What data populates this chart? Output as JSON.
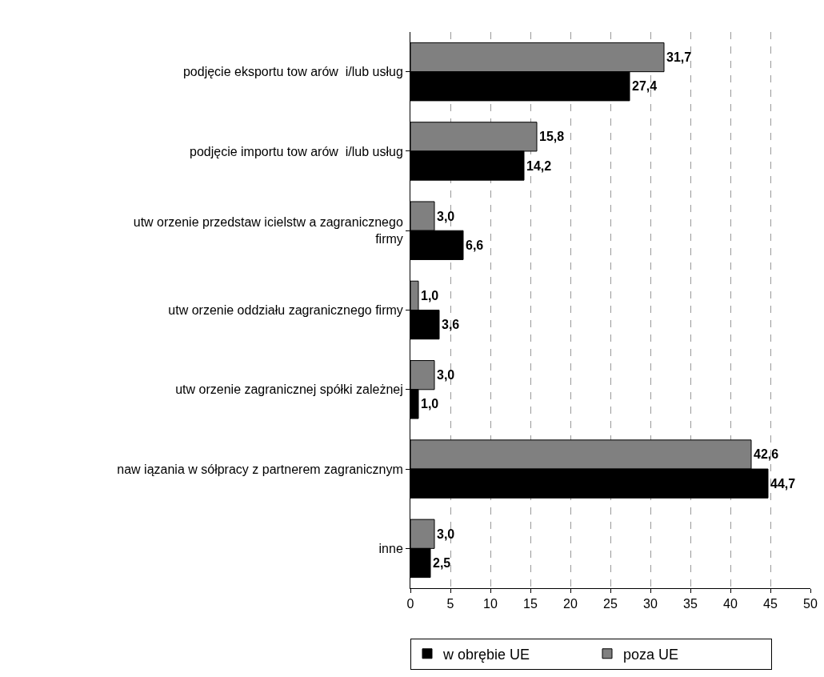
{
  "chart_data": {
    "type": "bar",
    "orientation": "horizontal",
    "categories": [
      "podjęcie eksportu tow arów  i/lub usług",
      "podjęcie importu tow arów  i/lub usług",
      "utw orzenie przedstaw icielstw a zagranicznego firmy",
      "utw orzenie oddziału zagranicznego firmy",
      "utw orzenie zagranicznej spółki zależnej",
      "naw iązania w sółpracy z partnerem zagranicznym",
      "inne"
    ],
    "series": [
      {
        "name": "w obrębie UE",
        "color": "#000000",
        "values": [
          27.4,
          14.2,
          6.6,
          3.6,
          1.0,
          44.7,
          2.5
        ],
        "value_labels": [
          "27,4",
          "14,2",
          "6,6",
          "3,6",
          "1,0",
          "44,7",
          "2,5"
        ]
      },
      {
        "name": "poza UE",
        "color": "#808080",
        "values": [
          31.7,
          15.8,
          3.0,
          1.0,
          3.0,
          42.6,
          3.0
        ],
        "value_labels": [
          "31,7",
          "15,8",
          "3,0",
          "1,0",
          "3,0",
          "42,6",
          "3,0"
        ]
      }
    ],
    "xlim": [
      0,
      50
    ],
    "xticks": [
      0,
      5,
      10,
      15,
      20,
      25,
      30,
      35,
      40,
      45,
      50
    ],
    "grid": "x",
    "legend": "bottom"
  }
}
